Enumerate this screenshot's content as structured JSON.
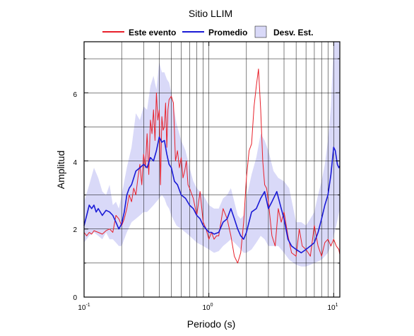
{
  "chart_data": {
    "type": "line",
    "title": "Sitio LLIM",
    "xlabel": "Periodo (s)",
    "ylabel": "Amplitud",
    "x_scale": "log",
    "xlim": [
      0.1,
      11.2
    ],
    "ylim": [
      0,
      7.5
    ],
    "grid": true,
    "legend_position": "top",
    "x_ticks": [
      {
        "value": 0.1,
        "base": "10",
        "exp": "-1"
      },
      {
        "value": 1,
        "base": "10",
        "exp": "0"
      },
      {
        "value": 10,
        "base": "10",
        "exp": "1"
      }
    ],
    "y_ticks": [
      0,
      2,
      4,
      6
    ],
    "legend": [
      {
        "label": "Este evento",
        "kind": "line",
        "color": "#e8202a"
      },
      {
        "label": "Promedio",
        "kind": "line",
        "color": "#1a1ad6"
      },
      {
        "label": "Desv. Est.",
        "kind": "band",
        "color": "#d9d9f8"
      }
    ],
    "series": [
      {
        "name": "Este evento",
        "color": "#e8202a",
        "x": [
          0.1,
          0.105,
          0.11,
          0.115,
          0.12,
          0.13,
          0.14,
          0.15,
          0.16,
          0.17,
          0.18,
          0.19,
          0.2,
          0.21,
          0.22,
          0.23,
          0.24,
          0.25,
          0.26,
          0.27,
          0.28,
          0.29,
          0.3,
          0.31,
          0.32,
          0.33,
          0.34,
          0.35,
          0.36,
          0.37,
          0.38,
          0.39,
          0.4,
          0.41,
          0.42,
          0.43,
          0.44,
          0.45,
          0.46,
          0.47,
          0.48,
          0.5,
          0.52,
          0.54,
          0.56,
          0.58,
          0.6,
          0.62,
          0.64,
          0.66,
          0.68,
          0.7,
          0.75,
          0.8,
          0.85,
          0.9,
          0.95,
          1.0,
          1.05,
          1.1,
          1.15,
          1.2,
          1.3,
          1.4,
          1.5,
          1.6,
          1.7,
          1.8,
          1.9,
          2.0,
          2.1,
          2.2,
          2.3,
          2.4,
          2.5,
          2.6,
          2.7,
          2.8,
          2.9,
          3.0,
          3.2,
          3.4,
          3.6,
          3.8,
          4.0,
          4.3,
          4.6,
          5.0,
          5.3,
          5.6,
          6.0,
          6.5,
          7.0,
          7.5,
          8.0,
          8.5,
          9.0,
          9.5,
          10.0,
          10.5,
          11.0,
          11.2
        ],
        "values": [
          1.9,
          1.8,
          1.9,
          1.85,
          1.95,
          1.9,
          1.85,
          1.95,
          2.0,
          1.9,
          2.4,
          2.3,
          2.1,
          2.3,
          2.6,
          3.0,
          2.8,
          3.2,
          3.0,
          3.5,
          3.9,
          3.3,
          4.2,
          3.8,
          4.8,
          3.6,
          5.2,
          4.8,
          5.5,
          4.6,
          6.0,
          5.2,
          5.5,
          3.3,
          5.3,
          4.9,
          5.0,
          5.7,
          4.4,
          5.5,
          5.8,
          5.9,
          5.7,
          4.0,
          4.3,
          3.8,
          4.1,
          3.5,
          3.7,
          4.0,
          3.3,
          3.2,
          2.9,
          2.4,
          3.1,
          2.2,
          2.0,
          1.7,
          1.9,
          1.7,
          1.8,
          1.8,
          2.6,
          2.3,
          1.8,
          1.2,
          1.0,
          1.3,
          2.2,
          3.5,
          4.3,
          4.5,
          5.6,
          6.2,
          6.7,
          5.5,
          4.0,
          3.3,
          3.2,
          2.8,
          1.8,
          1.5,
          2.6,
          2.2,
          2.5,
          1.8,
          1.3,
          1.2,
          2.0,
          1.5,
          1.4,
          1.2,
          2.1,
          1.5,
          1.2,
          1.6,
          1.7,
          1.5,
          1.7,
          1.5,
          1.4,
          1.25
        ]
      },
      {
        "name": "Promedio",
        "color": "#1a1ad6",
        "x": [
          0.1,
          0.105,
          0.11,
          0.115,
          0.12,
          0.125,
          0.13,
          0.14,
          0.15,
          0.16,
          0.17,
          0.18,
          0.19,
          0.2,
          0.21,
          0.22,
          0.23,
          0.24,
          0.25,
          0.26,
          0.28,
          0.3,
          0.32,
          0.34,
          0.36,
          0.38,
          0.4,
          0.42,
          0.44,
          0.46,
          0.48,
          0.5,
          0.53,
          0.56,
          0.6,
          0.65,
          0.7,
          0.75,
          0.8,
          0.85,
          0.9,
          0.95,
          1.0,
          1.05,
          1.1,
          1.2,
          1.3,
          1.4,
          1.5,
          1.6,
          1.7,
          1.8,
          1.9,
          2.0,
          2.2,
          2.4,
          2.6,
          2.8,
          3.0,
          3.2,
          3.5,
          3.8,
          4.0,
          4.3,
          4.6,
          5.0,
          5.5,
          6.0,
          6.5,
          7.0,
          7.5,
          8.0,
          8.5,
          9.0,
          9.5,
          10.0,
          10.3,
          10.7,
          11.0,
          11.2
        ],
        "values": [
          2.1,
          2.4,
          2.7,
          2.6,
          2.7,
          2.5,
          2.6,
          2.4,
          2.55,
          2.5,
          2.4,
          2.2,
          2.0,
          2.15,
          2.5,
          3.0,
          3.2,
          3.3,
          3.5,
          3.7,
          3.8,
          3.9,
          3.8,
          4.1,
          4.0,
          4.3,
          4.7,
          4.55,
          4.6,
          4.2,
          3.9,
          3.8,
          3.4,
          3.3,
          3.0,
          2.9,
          2.7,
          2.6,
          2.4,
          2.3,
          2.1,
          2.0,
          1.9,
          1.9,
          1.85,
          1.9,
          2.2,
          2.3,
          2.6,
          2.3,
          2.0,
          1.8,
          1.7,
          1.9,
          2.5,
          2.6,
          2.9,
          3.1,
          2.6,
          2.8,
          3.1,
          2.6,
          2.3,
          1.7,
          1.5,
          1.4,
          1.3,
          1.4,
          1.5,
          1.6,
          1.9,
          2.3,
          2.7,
          3.0,
          3.6,
          4.4,
          4.3,
          3.9,
          3.8,
          3.85
        ]
      }
    ],
    "band": {
      "name": "Desv. Est.",
      "color": "#d9d9f8",
      "x": [
        0.1,
        0.11,
        0.12,
        0.13,
        0.14,
        0.15,
        0.16,
        0.17,
        0.18,
        0.19,
        0.2,
        0.22,
        0.24,
        0.26,
        0.28,
        0.3,
        0.32,
        0.34,
        0.36,
        0.38,
        0.4,
        0.42,
        0.44,
        0.46,
        0.48,
        0.5,
        0.55,
        0.6,
        0.65,
        0.7,
        0.75,
        0.8,
        0.9,
        1.0,
        1.1,
        1.2,
        1.3,
        1.4,
        1.5,
        1.6,
        1.7,
        1.8,
        1.9,
        2.0,
        2.2,
        2.4,
        2.6,
        2.8,
        3.0,
        3.3,
        3.6,
        4.0,
        4.4,
        5.0,
        5.5,
        6.0,
        6.5,
        7.0,
        7.5,
        8.0,
        8.5,
        9.0,
        9.5,
        10.0,
        10.5,
        11.2
      ],
      "upper": [
        2.8,
        3.3,
        3.8,
        3.5,
        3.1,
        3.0,
        3.3,
        2.7,
        2.8,
        2.6,
        3.0,
        3.8,
        4.4,
        5.4,
        5.2,
        5.6,
        5.5,
        6.2,
        6.5,
        6.1,
        6.9,
        6.6,
        6.6,
        6.4,
        6.3,
        6.0,
        5.1,
        4.6,
        4.3,
        3.8,
        3.4,
        3.2,
        3.0,
        2.7,
        2.6,
        2.6,
        2.9,
        3.0,
        3.2,
        2.8,
        2.4,
        2.3,
        2.4,
        2.9,
        3.6,
        4.1,
        4.8,
        4.6,
        4.3,
        3.7,
        3.5,
        3.4,
        3.2,
        2.2,
        2.2,
        2.1,
        2.3,
        2.5,
        3.0,
        3.4,
        3.9,
        4.6,
        5.6,
        7.5,
        7.5,
        7.5
      ],
      "lower": [
        1.6,
        1.8,
        1.9,
        1.8,
        1.7,
        1.9,
        1.7,
        1.7,
        1.6,
        1.5,
        1.5,
        1.9,
        2.2,
        2.3,
        2.4,
        2.5,
        2.5,
        2.6,
        2.7,
        2.8,
        2.9,
        3.0,
        2.9,
        2.7,
        2.6,
        2.4,
        2.1,
        2.0,
        1.9,
        1.8,
        1.7,
        1.6,
        1.5,
        1.4,
        1.3,
        1.35,
        1.5,
        1.6,
        1.7,
        1.6,
        1.5,
        1.4,
        1.3,
        1.3,
        1.4,
        1.6,
        1.8,
        1.7,
        1.5,
        1.5,
        1.5,
        1.3,
        1.1,
        0.95,
        0.9,
        0.9,
        0.95,
        1.0,
        1.05,
        1.1,
        1.2,
        1.3,
        1.5,
        1.8,
        2.1,
        2.6
      ]
    }
  }
}
